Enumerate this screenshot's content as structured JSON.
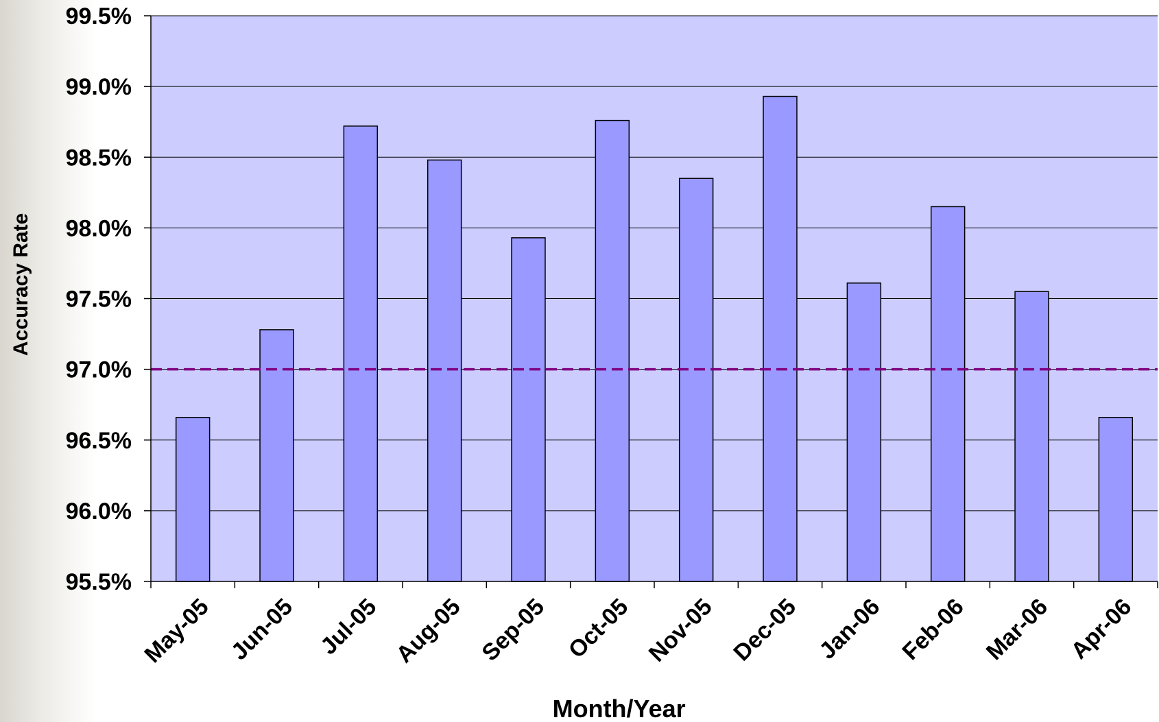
{
  "chart_data": {
    "type": "bar",
    "title": "",
    "xlabel": "Month/Year",
    "ylabel": "Accuracy Rate",
    "categories": [
      "May-05",
      "Jun-05",
      "Jul-05",
      "Aug-05",
      "Sep-05",
      "Oct-05",
      "Nov-05",
      "Dec-05",
      "Jan-06",
      "Feb-06",
      "Mar-06",
      "Apr-06"
    ],
    "values": [
      96.66,
      97.28,
      98.72,
      98.48,
      97.93,
      98.76,
      98.35,
      98.93,
      97.61,
      98.15,
      97.55,
      96.66
    ],
    "ylim": [
      95.5,
      99.5
    ],
    "yticks": [
      95.5,
      96.0,
      96.5,
      97.0,
      97.5,
      98.0,
      98.5,
      99.0,
      99.5
    ],
    "ytick_labels": [
      "95.5%",
      "96.0%",
      "96.5%",
      "97.0%",
      "97.5%",
      "98.0%",
      "98.5%",
      "99.0%",
      "99.5%"
    ],
    "reference_line": {
      "value": 97.0,
      "style": "dashed",
      "color": "#800080"
    },
    "grid": true,
    "legend": "none",
    "colors": {
      "plot_background": "#ccccff",
      "bar_fill": "#9999ff",
      "bar_stroke": "#000000",
      "gridline": "#000000"
    }
  }
}
